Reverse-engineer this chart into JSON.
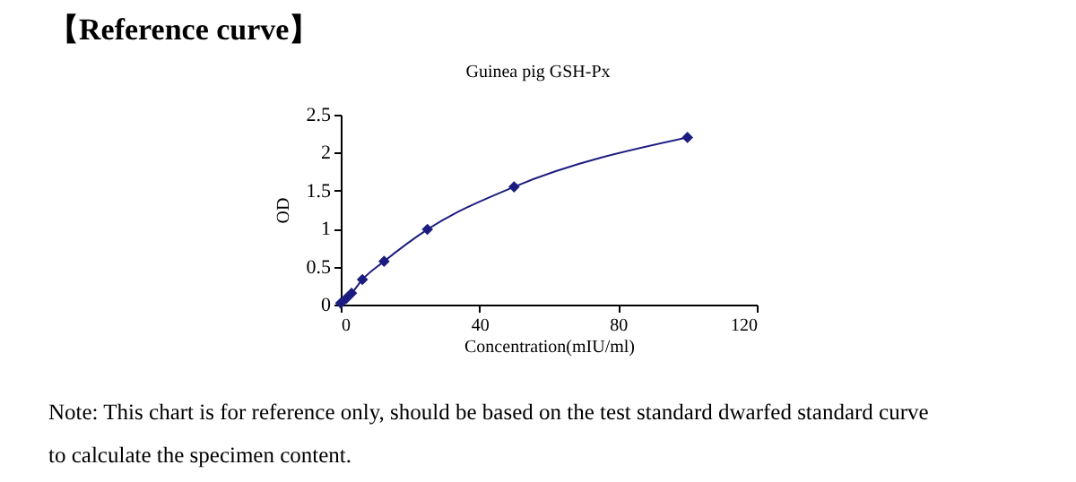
{
  "chart_data": {
    "type": "line",
    "title": "Guinea pig GSH-Px",
    "xlabel": "Concentration(mIU/ml)",
    "ylabel": "OD",
    "annotations": [
      "【Reference curve】",
      "Note: This chart is for reference only, should be based on the test standard dwarfed standard curve",
      "to calculate the specimen content."
    ],
    "x": [
      0,
      1.56,
      3.125,
      6.25,
      12.5,
      25,
      50,
      100
    ],
    "series": [
      {
        "color": "#1c1c80",
        "values": [
          0.02,
          0.08,
          0.15,
          0.33,
          0.57,
          0.99,
          1.55,
          2.2
        ]
      }
    ],
    "xlim": [
      0,
      120
    ],
    "xticks": [
      0,
      40,
      80,
      120
    ],
    "ylim": [
      0,
      2.5
    ],
    "yticks": [
      0,
      0.5,
      1,
      1.5,
      2,
      2.5
    ],
    "grid": false,
    "marker": "diamond",
    "line_style": "solid"
  }
}
